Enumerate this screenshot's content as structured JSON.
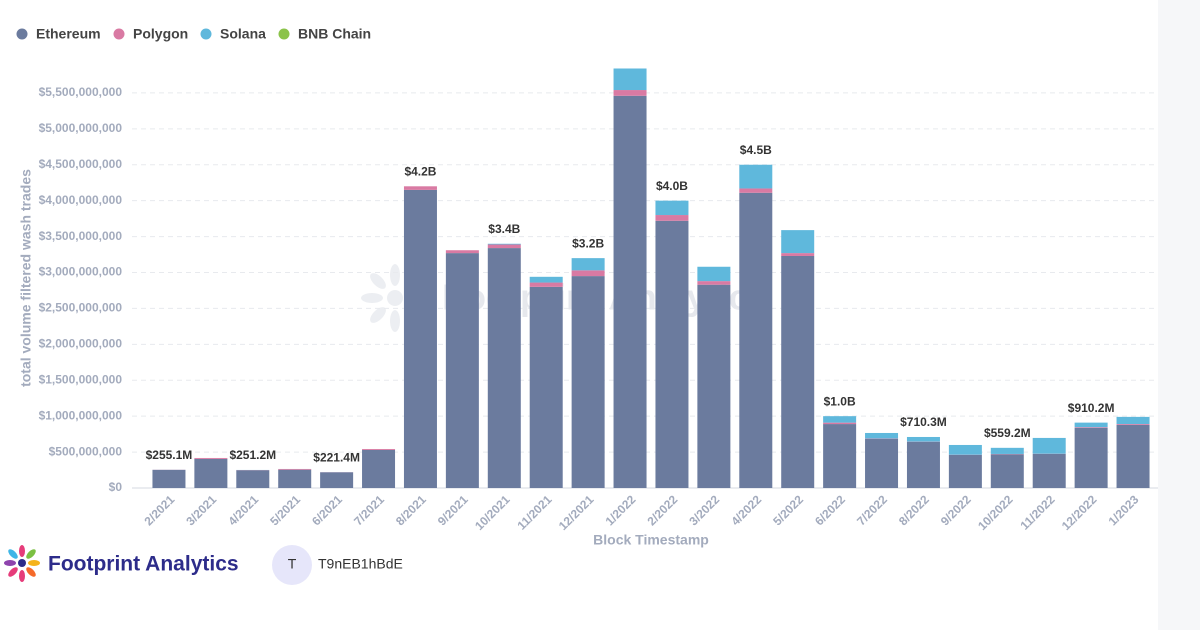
{
  "chart_data": {
    "type": "stacked_bar",
    "y_label": "total volume filtered wash trades",
    "x_label": "Block Timestamp",
    "categories": [
      "2/2021",
      "3/2021",
      "4/2021",
      "5/2021",
      "6/2021",
      "7/2021",
      "8/2021",
      "9/2021",
      "10/2021",
      "11/2021",
      "12/2021",
      "1/2022",
      "2/2022",
      "3/2022",
      "4/2022",
      "5/2022",
      "6/2022",
      "7/2022",
      "8/2022",
      "9/2022",
      "10/2022",
      "11/2022",
      "12/2022",
      "1/2023"
    ],
    "series": [
      {
        "name": "Ethereum",
        "color": "#6b7b9e",
        "values": [
          252100000,
          405000000,
          248200000,
          255000000,
          218400000,
          530000000,
          4150000000,
          3270000000,
          3340000000,
          2800000000,
          2950000000,
          5460000000,
          3720000000,
          2830000000,
          4110000000,
          3230000000,
          890000000,
          683000000,
          641000000,
          460000000,
          470000000,
          474000000,
          836000000,
          878000000
        ]
      },
      {
        "name": "Polygon",
        "color": "#d97aa3",
        "values": [
          2000000,
          13000000,
          2000000,
          10000000,
          2000000,
          13000000,
          50000000,
          40000000,
          50000000,
          60000000,
          80000000,
          80000000,
          80000000,
          50000000,
          60000000,
          40000000,
          20000000,
          5000000,
          4000000,
          3000000,
          4000000,
          3000000,
          10000000,
          12000000
        ]
      },
      {
        "name": "Solana",
        "color": "#5fb8dc",
        "values": [
          1000000,
          0,
          1000000,
          0,
          1000000,
          0,
          0,
          0,
          10000000,
          80000000,
          170000000,
          300000000,
          200000000,
          200000000,
          330000000,
          320000000,
          90000000,
          78000000,
          65300000,
          136000000,
          85200000,
          220000000,
          64200000,
          100000000
        ]
      },
      {
        "name": "BNB Chain",
        "color": "#8bc34a",
        "values": [
          0,
          0,
          0,
          0,
          0,
          0,
          0,
          0,
          0,
          0,
          0,
          0,
          0,
          0,
          0,
          0,
          0,
          0,
          0,
          0,
          0,
          0,
          0,
          0
        ]
      }
    ],
    "totals": {
      "values": [
        255100000,
        null,
        251200000,
        null,
        221400000,
        null,
        4200000000,
        null,
        3400000000,
        null,
        3200000000,
        null,
        4000000000,
        null,
        4500000000,
        null,
        1000000000,
        null,
        710300000,
        null,
        559200000,
        null,
        910200000,
        null
      ],
      "value_labels": [
        "$255.1M",
        null,
        "$251.2M",
        null,
        "$221.4M",
        null,
        "$4.2B",
        null,
        "$3.4B",
        null,
        "$3.2B",
        null,
        "$4.0B",
        null,
        "$4.5B",
        null,
        "$1.0B",
        null,
        "$710.3M",
        null,
        "$559.2M",
        null,
        "$910.2M",
        null
      ]
    },
    "ylim": [
      0,
      6000000000
    ],
    "yticks": [
      {
        "value": 0,
        "label": "$0"
      },
      {
        "value": 500000000,
        "label": "$500,000,000"
      },
      {
        "value": 1000000000,
        "label": "$1,000,000,000"
      },
      {
        "value": 1500000000,
        "label": "$1,500,000,000"
      },
      {
        "value": 2000000000,
        "label": "$2,000,000,000"
      },
      {
        "value": 2500000000,
        "label": "$2,500,000,000"
      },
      {
        "value": 3000000000,
        "label": "$3,000,000,000"
      },
      {
        "value": 3500000000,
        "label": "$3,500,000,000"
      },
      {
        "value": 4000000000,
        "label": "$4,000,000,000"
      },
      {
        "value": 4500000000,
        "label": "$4,500,000,000"
      },
      {
        "value": 5000000000,
        "label": "$5,000,000,000"
      },
      {
        "value": 5500000000,
        "label": "$5,500,000,000"
      }
    ],
    "grid": true,
    "legend": "top-left"
  },
  "watermark": "Footprint Analytics",
  "footer": {
    "brand": "Footprint Analytics",
    "avatar": "T",
    "user": "T9nEB1hBdE"
  }
}
